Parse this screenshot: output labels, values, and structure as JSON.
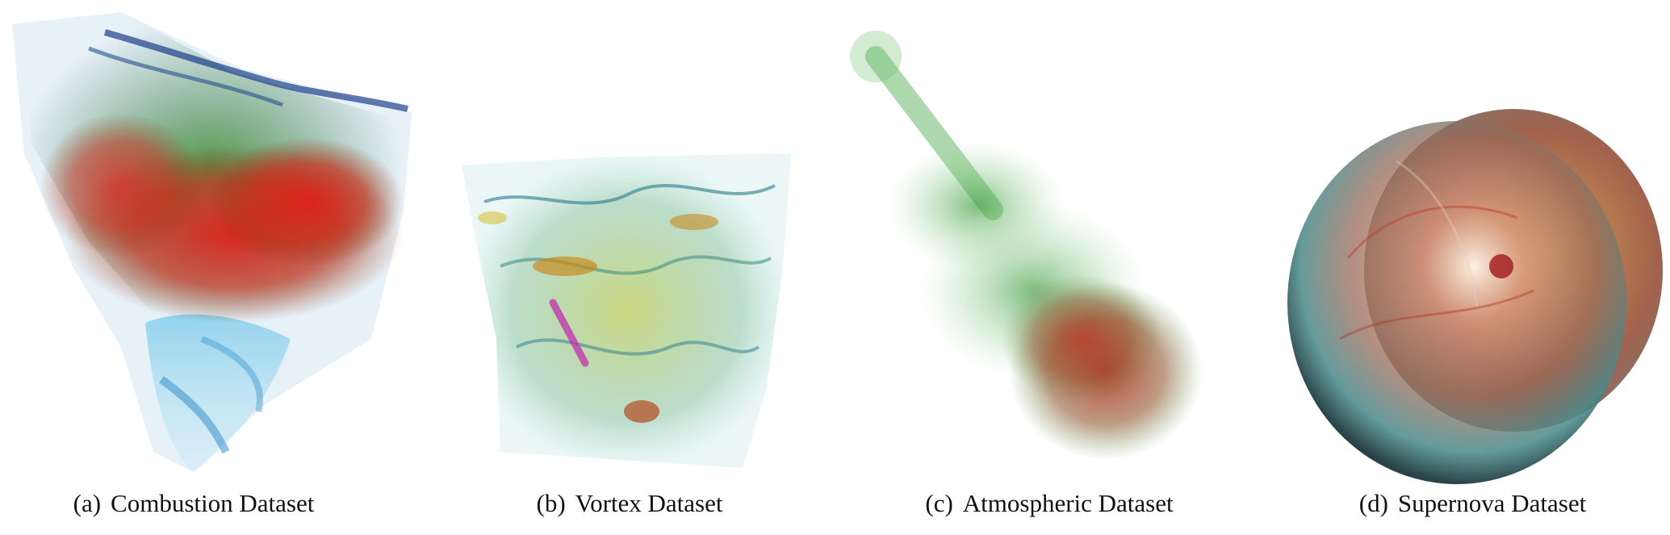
{
  "figure": {
    "panels": [
      {
        "tag": "(a)",
        "title": "Combustion Dataset"
      },
      {
        "tag": "(b)",
        "title": "Vortex Dataset"
      },
      {
        "tag": "(c)",
        "title": "Atmospheric Dataset"
      },
      {
        "tag": "(d)",
        "title": "Supernova Dataset"
      }
    ]
  }
}
